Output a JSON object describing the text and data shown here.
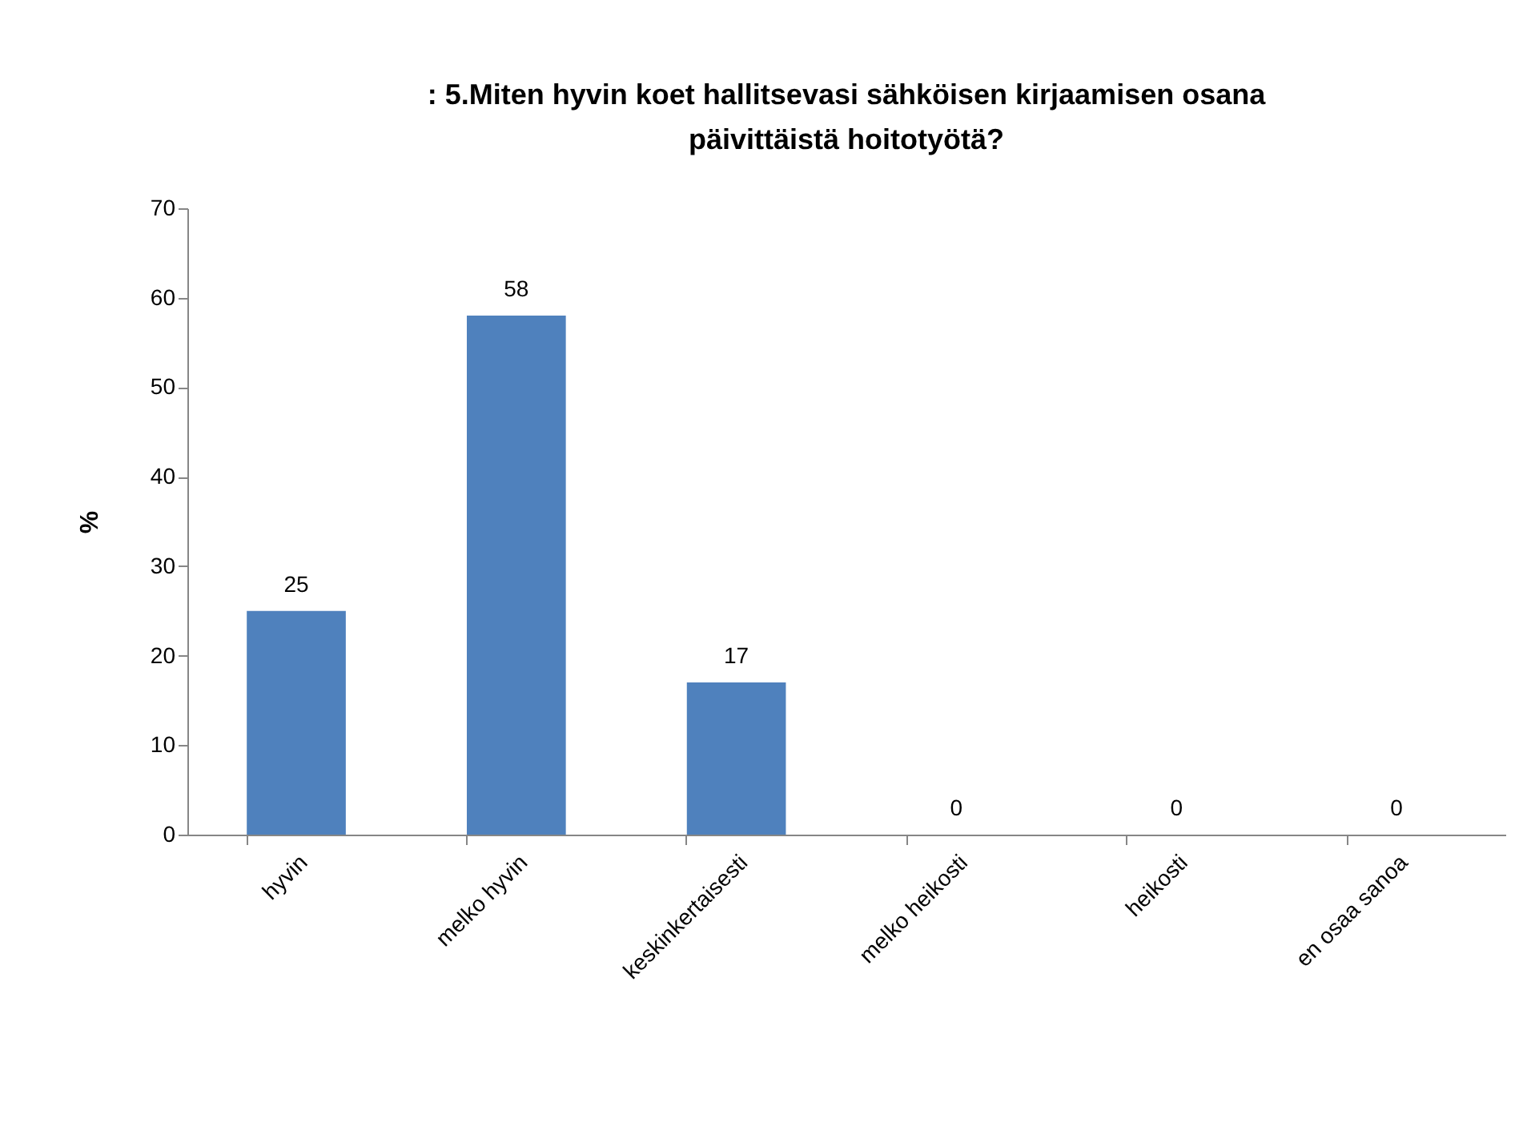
{
  "chart_data": {
    "type": "bar",
    "title": ": 5.Miten hyvin koet hallitsevasi sähköisen kirjaamisen osana päivittäistä hoitotyötä?",
    "ylabel": "%",
    "categories": [
      "hyvin",
      "melko hyvin",
      "keskinkertaisesti",
      "melko heikosti",
      "heikosti",
      "en osaa sanoa"
    ],
    "values": [
      25,
      58,
      17,
      0,
      0,
      0
    ],
    "color": "#4f81bd",
    "data_labels": true,
    "ylim": [
      0,
      70
    ],
    "yticks": [
      0,
      10,
      20,
      30,
      40,
      50,
      60,
      70
    ],
    "grid": false
  }
}
